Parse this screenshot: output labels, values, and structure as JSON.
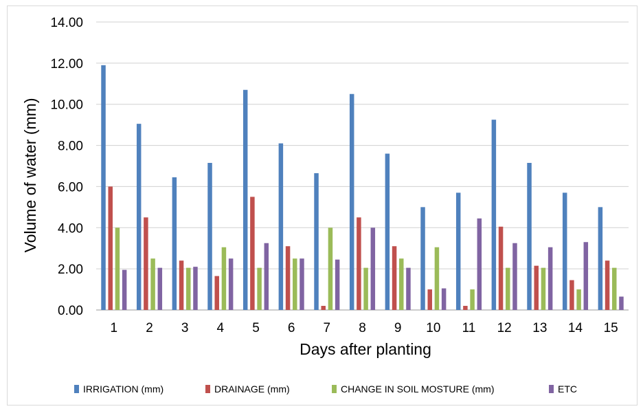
{
  "chart_data": {
    "type": "bar",
    "title": "",
    "xlabel": "Days after planting",
    "ylabel": "Volume of water (mm)",
    "ylim": [
      0,
      14
    ],
    "yticks": [
      "0.00",
      "2.00",
      "4.00",
      "6.00",
      "8.00",
      "10.00",
      "12.00",
      "14.00"
    ],
    "categories": [
      "1",
      "2",
      "3",
      "4",
      "5",
      "6",
      "7",
      "8",
      "9",
      "10",
      "11",
      "12",
      "13",
      "14",
      "15"
    ],
    "grid": true,
    "legend_position": "bottom",
    "series": [
      {
        "name": "IRRIGATION (mm)",
        "color": "#4f81bd",
        "values": [
          11.9,
          9.05,
          6.45,
          7.15,
          10.7,
          8.1,
          6.65,
          10.5,
          7.6,
          5.0,
          5.7,
          9.25,
          7.15,
          5.7,
          5.0
        ]
      },
      {
        "name": "DRAINAGE (mm)",
        "color": "#c0504d",
        "values": [
          6.0,
          4.5,
          2.4,
          1.65,
          5.5,
          3.1,
          0.2,
          4.5,
          3.1,
          1.0,
          0.2,
          4.05,
          2.15,
          1.45,
          2.4
        ]
      },
      {
        "name": "CHANGE IN SOIL MOSTURE (mm)",
        "color": "#9bbb59",
        "values": [
          4.0,
          2.5,
          2.05,
          3.05,
          2.05,
          2.5,
          4.0,
          2.05,
          2.5,
          3.05,
          1.0,
          2.05,
          2.05,
          1.0,
          2.05
        ]
      },
      {
        "name": "ETC",
        "color": "#8064a2",
        "values": [
          1.95,
          2.05,
          2.1,
          2.5,
          3.25,
          2.5,
          2.45,
          4.0,
          2.05,
          1.05,
          4.45,
          3.25,
          3.05,
          3.3,
          0.65
        ]
      }
    ]
  }
}
